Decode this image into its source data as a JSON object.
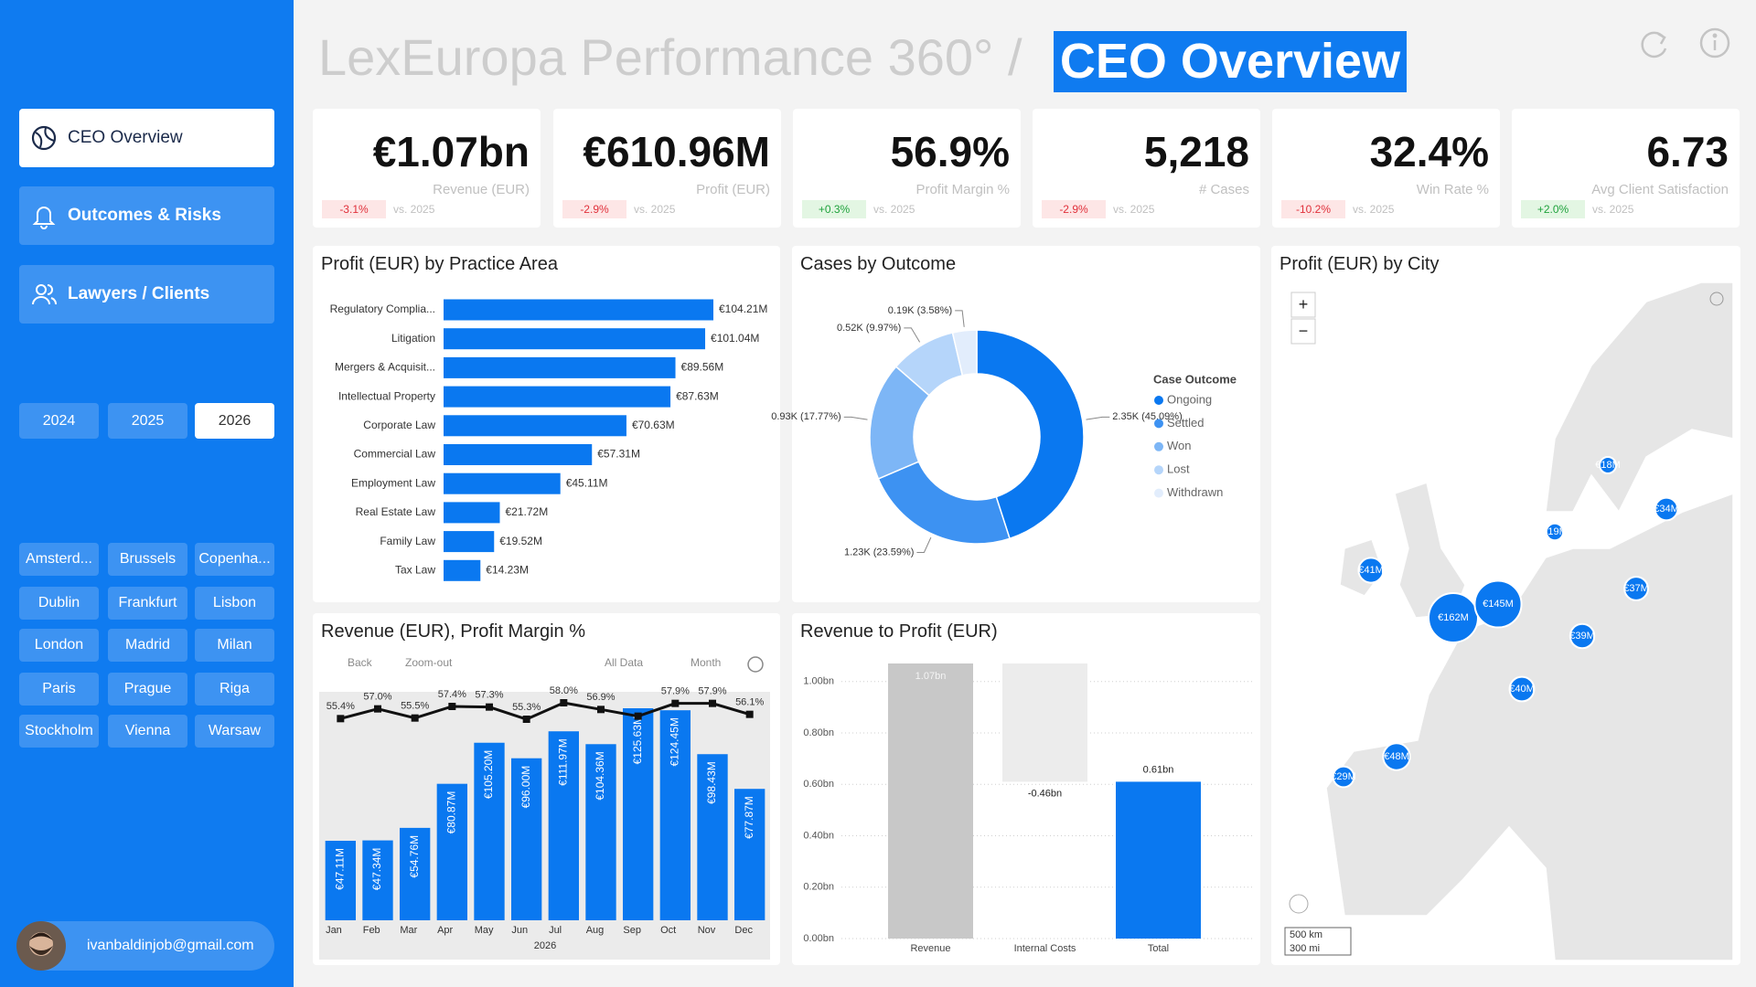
{
  "header": {
    "title": "LexEuropa Performance 360° /",
    "page": "CEO Overview"
  },
  "nav": [
    "CEO Overview",
    "Outcomes & Risks",
    "Lawyers / Clients"
  ],
  "years": [
    "2024",
    "2025",
    "2026"
  ],
  "cities": [
    "Amsterd...",
    "Brussels",
    "Copenha...",
    "Dublin",
    "Frankfurt",
    "Lisbon",
    "London",
    "Madrid",
    "Milan",
    "Paris",
    "Prague",
    "Riga",
    "Stockholm",
    "Vienna",
    "Warsaw"
  ],
  "user": "ivanbaldinjob@gmail.com",
  "kpis": [
    {
      "value": "€1.07bn",
      "label": "Revenue (EUR)",
      "delta": "-3.1%",
      "vs": "vs. 2025"
    },
    {
      "value": "€610.96M",
      "label": "Profit (EUR)",
      "delta": "-2.9%",
      "vs": "vs. 2025"
    },
    {
      "value": "56.9%",
      "label": "Profit Margin %",
      "delta": "+0.3%",
      "vs": "vs. 2025"
    },
    {
      "value": "5,218",
      "label": "# Cases",
      "delta": "-2.9%",
      "vs": "vs. 2025"
    },
    {
      "value": "32.4%",
      "label": "Win Rate %",
      "delta": "-10.2%",
      "vs": "vs. 2025"
    },
    {
      "value": "6.73",
      "label": "Avg Client Satisfaction",
      "delta": "+2.0%",
      "vs": "vs. 2025"
    }
  ],
  "chart_data": [
    {
      "type": "hbar",
      "title": "Profit (EUR) by Practice Area",
      "categories": [
        "Regulatory Complia...",
        "Litigation",
        "Mergers & Acquisit...",
        "Intellectual Property",
        "Corporate Law",
        "Commercial Law",
        "Employment Law",
        "Real Estate Law",
        "Family Law",
        "Tax Law"
      ],
      "values": [
        104.21,
        101.04,
        89.56,
        87.63,
        70.63,
        57.31,
        45.11,
        21.72,
        19.52,
        14.23
      ],
      "value_labels": [
        "€104.21M",
        "€101.04M",
        "€89.56M",
        "€87.63M",
        "€70.63M",
        "€57.31M",
        "€45.11M",
        "€21.72M",
        "€19.52M",
        "€14.23M"
      ],
      "color": "#0a78f0"
    },
    {
      "type": "donut",
      "title": "Cases by Outcome",
      "legend_title": "Case Outcome",
      "legend": "right",
      "categories": [
        "Ongoing",
        "Settled",
        "Won",
        "Lost",
        "Withdrawn"
      ],
      "values": [
        2.35,
        1.23,
        0.93,
        0.52,
        0.19
      ],
      "value_labels": [
        "2.35K (45.09%)",
        "1.23K (23.59%)",
        "0.93K (17.77%)",
        "0.52K (9.97%)",
        "0.19K (3.58%)"
      ],
      "colors": [
        "#0a78f0",
        "#3d92f2",
        "#7db6f6",
        "#b5d5fa",
        "#e2edfc"
      ]
    },
    {
      "type": "combo",
      "title": "Revenue (EUR), Profit Margin %",
      "toolbar": [
        "Back",
        "Zoom-out",
        "All Data",
        "Month"
      ],
      "categories": [
        "Jan",
        "Feb",
        "Mar",
        "Apr",
        "May",
        "Jun",
        "Jul",
        "Aug",
        "Sep",
        "Oct",
        "Nov",
        "Dec"
      ],
      "x_label": "2026",
      "series": [
        {
          "type": "bar",
          "color": "#0a78f0",
          "values": [
            47.11,
            47.34,
            54.76,
            80.87,
            105.2,
            96.0,
            111.97,
            104.36,
            125.63,
            124.45,
            98.43,
            77.87
          ],
          "value_labels": [
            "€47.11M",
            "€47.34M",
            "€54.76M",
            "€80.87M",
            "€105.20M",
            "€96.00M",
            "€111.97M",
            "€104.36M",
            "€125.63M",
            "€124.45M",
            "€98.43M",
            "€77.87M"
          ]
        },
        {
          "type": "line",
          "color": "#111111",
          "values": [
            55.4,
            57.0,
            55.5,
            57.4,
            57.3,
            55.3,
            58.0,
            56.9,
            55.8,
            57.9,
            57.9,
            56.1
          ],
          "value_labels": [
            "55.4%",
            "57.0%",
            "55.5%",
            "57.4%",
            "57.3%",
            "55.3%",
            "58.0%",
            "56.9%",
            null,
            "57.9%",
            "57.9%",
            "56.1%"
          ]
        }
      ]
    },
    {
      "type": "waterfall",
      "title": "Revenue to Profit (EUR)",
      "categories": [
        "Revenue",
        "Internal Costs",
        "Total"
      ],
      "values": [
        1.07,
        -0.46,
        0.61
      ],
      "value_labels": [
        "1.07bn",
        "-0.46bn",
        "0.61bn"
      ],
      "colors": [
        "#c8c8c8",
        "#ececec",
        "#0a78f0"
      ],
      "ylim": [
        0,
        1.07
      ],
      "yticks": [
        {
          "value": 0,
          "label": "0.00bn"
        },
        {
          "value": 0.2,
          "label": "0.20bn"
        },
        {
          "value": 0.4,
          "label": "0.40bn"
        },
        {
          "value": 0.6,
          "label": "0.60bn"
        },
        {
          "value": 0.8,
          "label": "0.80bn"
        },
        {
          "value": 1.0,
          "label": "1.00bn"
        }
      ],
      "grid": true
    },
    {
      "type": "bubble_map",
      "title": "Profit (EUR) by City",
      "values": [
        162,
        145,
        41,
        18,
        34,
        19,
        37,
        39,
        40,
        48,
        29
      ],
      "value_labels": [
        "€162M",
        "€145M",
        "€41M",
        "€18M",
        "€34M",
        "€19M",
        "€37M",
        "€39M",
        "€40M",
        "€48M",
        "€29M"
      ],
      "color": "#0a78f0",
      "zoom": [
        "+",
        "−"
      ],
      "scale_labels": [
        "500 km",
        "300 mi"
      ]
    }
  ]
}
